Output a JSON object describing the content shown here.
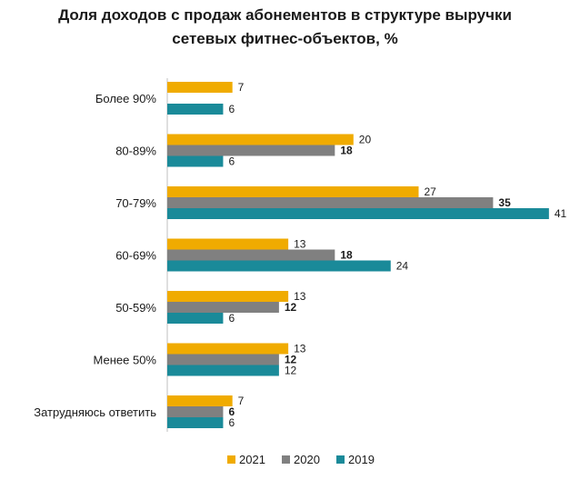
{
  "title_lines": [
    "Доля доходов с продаж абонементов в структуре выручки",
    "сетевых фитнес-объектов, %"
  ],
  "chart_data": {
    "type": "bar",
    "orientation": "horizontal",
    "title": "Доля доходов с продаж абонементов в структуре выручки сетевых фитнес-объектов, %",
    "categories": [
      "Более 90%",
      "80-89%",
      "70-79%",
      "60-69%",
      "50-59%",
      "Менее 50%",
      "Затрудняюсь ответить"
    ],
    "series": [
      {
        "name": "2021",
        "color": "#f0ab00",
        "bold_labels": false,
        "values": [
          7,
          20,
          27,
          13,
          13,
          13,
          7
        ]
      },
      {
        "name": "2020",
        "color": "#808080",
        "bold_labels": true,
        "values": [
          null,
          18,
          35,
          18,
          12,
          12,
          6
        ]
      },
      {
        "name": "2019",
        "color": "#1a8a99",
        "bold_labels": false,
        "values": [
          6,
          6,
          41,
          24,
          6,
          12,
          6
        ]
      }
    ],
    "xlim": [
      0,
      41
    ],
    "grid": false,
    "x_axis_visible": false,
    "data_labels": true,
    "legend_position": "bottom-center"
  }
}
